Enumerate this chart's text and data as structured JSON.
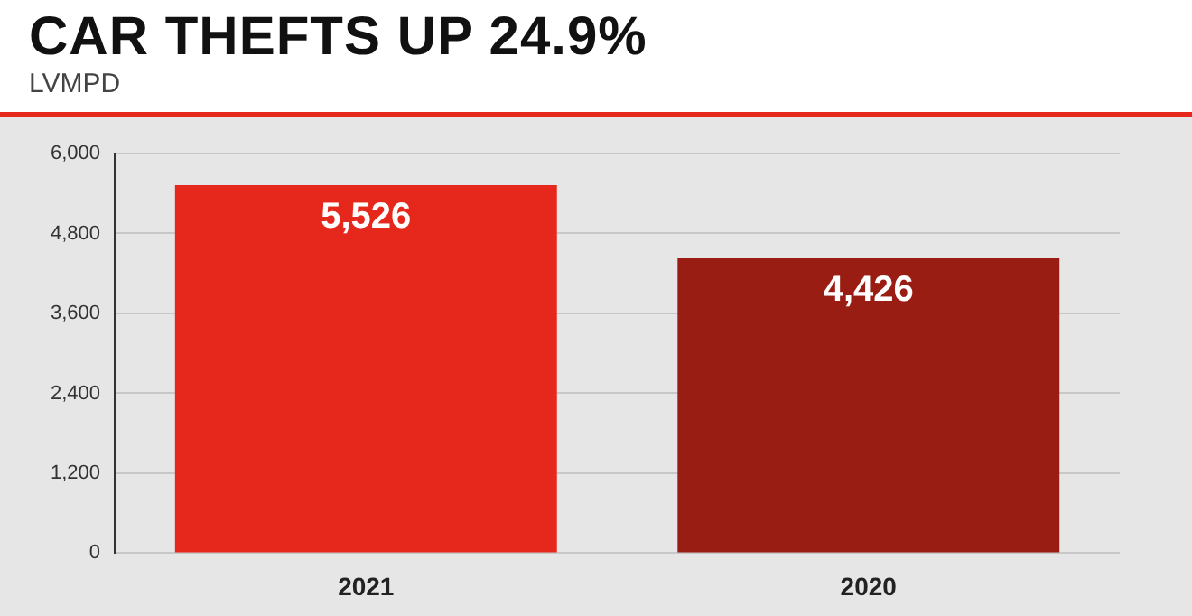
{
  "chart_data": {
    "type": "bar",
    "title": "CAR THEFTS UP 24.9%",
    "subtitle": "LVMPD",
    "categories": [
      "2021",
      "2020"
    ],
    "values": [
      5526,
      4426
    ],
    "colors": [
      "#e5281b",
      "#9a1d14"
    ],
    "ylim": [
      0,
      6000
    ],
    "yticks": [
      0,
      {
        "value": 1200,
        "label": "1,200"
      },
      {
        "value": 2400,
        "label": "2,400"
      },
      {
        "value": 3600,
        "label": "3,600"
      },
      {
        "value": 4800,
        "label": "4,800"
      },
      {
        "value": 6000,
        "label": "6,000"
      }
    ],
    "grid": "y",
    "legend": false,
    "value_labels": [
      "5,526",
      "4,426"
    ]
  }
}
